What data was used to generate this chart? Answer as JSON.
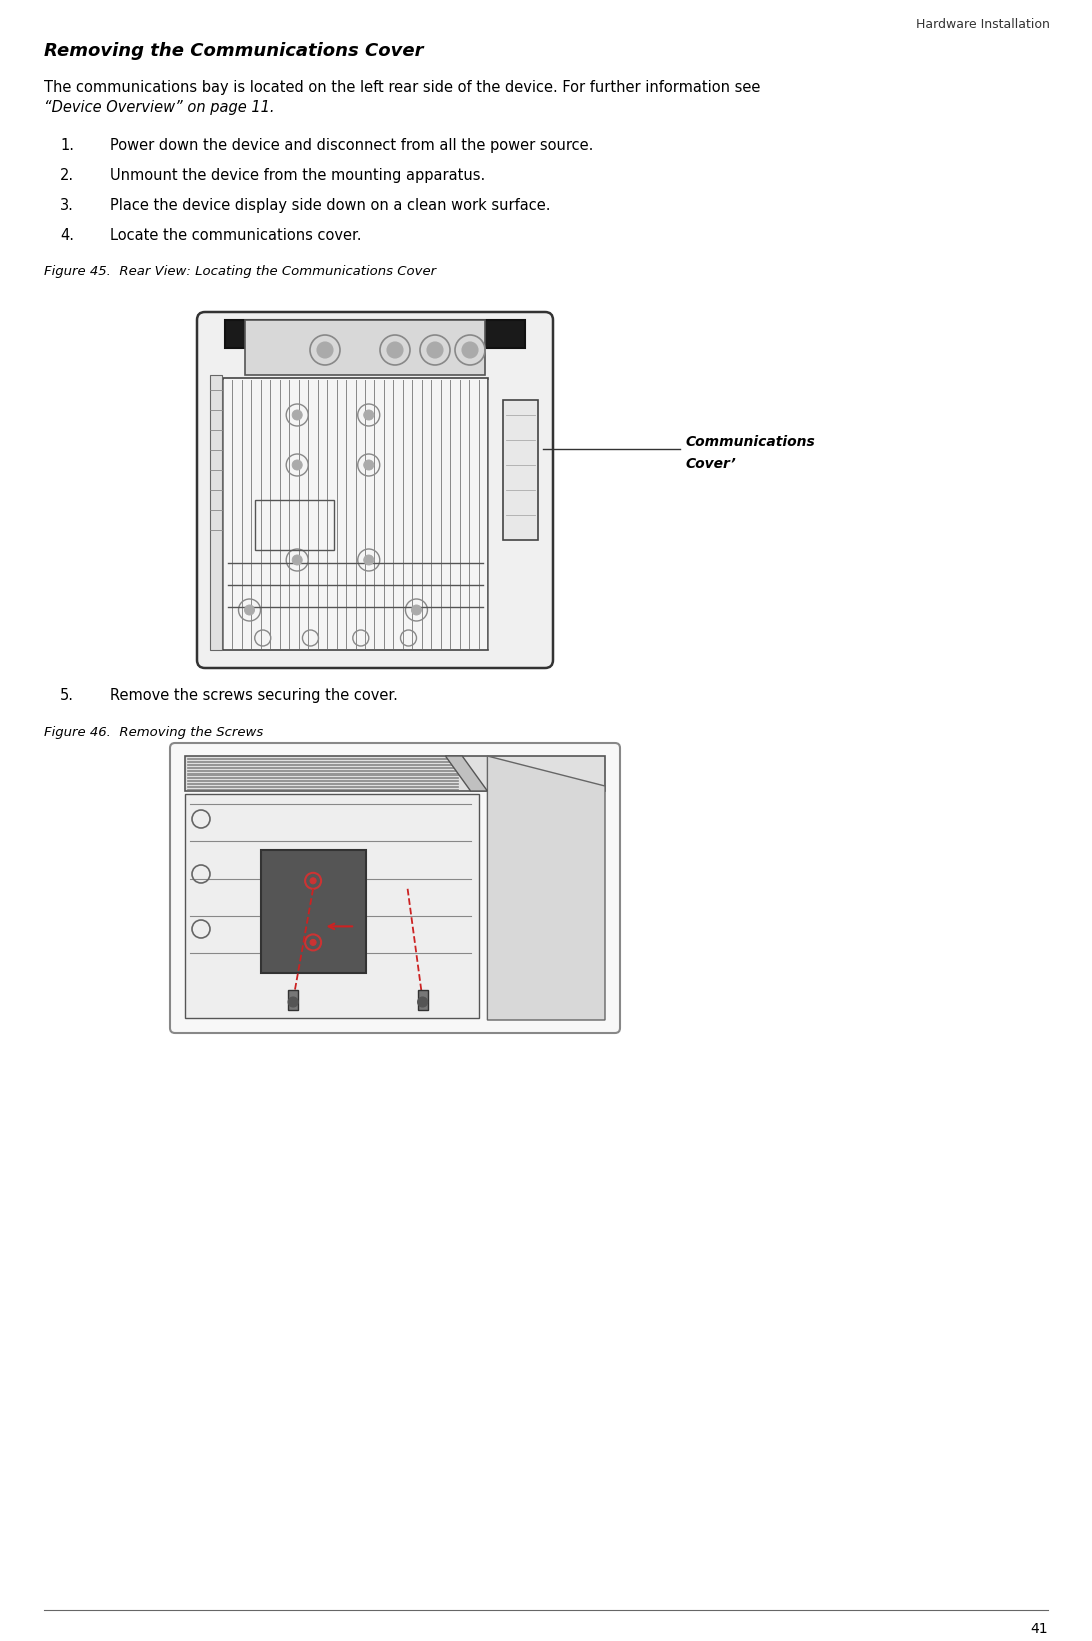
{
  "header_text": "Hardware Installation",
  "title": "Removing the Communications Cover",
  "intro_line1": "The communications bay is located on the left rear side of the device. For further information see",
  "intro_line2": "“Device Overview” on page 11.",
  "steps": [
    "Power down the device and disconnect from all the power source.",
    "Unmount the device from the mounting apparatus.",
    "Place the device display side down on a clean work surface.",
    "Locate the communications cover."
  ],
  "step5": "Remove the screws securing the cover.",
  "figure45_caption": "Figure 45.  Rear View: Locating the Communications Cover",
  "figure46_caption": "Figure 46.  Removing the Screws",
  "comm_cover_label_line1": "Communications",
  "comm_cover_label_line2": "Cover",
  "page_number": "41",
  "bg_color": "#ffffff",
  "text_color": "#000000",
  "light_gray": "#e8e8e8",
  "mid_gray": "#c0c0c0",
  "dark_gray": "#555555",
  "black": "#111111"
}
